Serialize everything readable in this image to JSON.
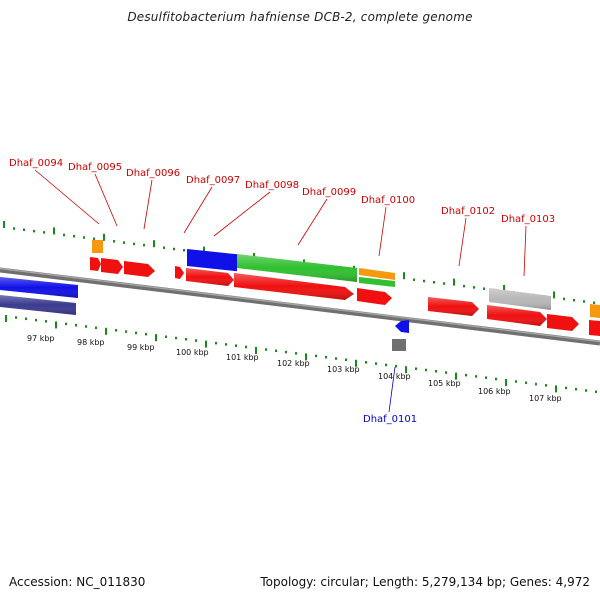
{
  "title": "Desulfitobacterium hafniense DCB-2, complete genome",
  "footer": {
    "accession": "Accession: NC_011830",
    "topology": "Topology: circular; Length: 5,279,134 bp; Genes: 4,972"
  },
  "colors": {
    "red": "#f01010",
    "blue": "#1010e8",
    "green": "#30c030",
    "orange": "#f59a10",
    "gray": "#b8b8b8",
    "darkgray": "#707070",
    "navy": "#3a3a90",
    "tick": "#1a8a1a",
    "label_red": "#cc0000",
    "label_blue": "#0000cc"
  },
  "scale_labels": [
    "97 kbp",
    "98 kbp",
    "99 kbp",
    "100 kbp",
    "101 kbp",
    "102 kbp",
    "103 kbp",
    "104 kbp",
    "105 kbp",
    "106 kbp",
    "107 kbp"
  ],
  "gene_labels": [
    {
      "name": "Dhaf_0094",
      "color": "label_red"
    },
    {
      "name": "Dhaf_0095",
      "color": "label_red"
    },
    {
      "name": "Dhaf_0096",
      "color": "label_red"
    },
    {
      "name": "Dhaf_0097",
      "color": "label_red"
    },
    {
      "name": "Dhaf_0098",
      "color": "label_red"
    },
    {
      "name": "Dhaf_0099",
      "color": "label_red"
    },
    {
      "name": "Dhaf_0100",
      "color": "label_red"
    },
    {
      "name": "Dhaf_0102",
      "color": "label_red"
    },
    {
      "name": "Dhaf_0103",
      "color": "label_red"
    },
    {
      "name": "Dhaf_0101",
      "color": "label_blue"
    }
  ]
}
